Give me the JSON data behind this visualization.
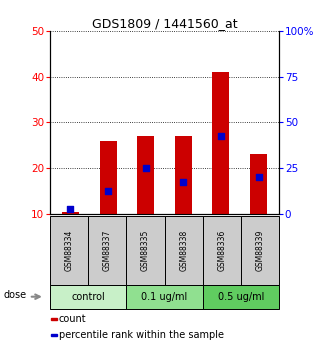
{
  "title": "GDS1809 / 1441560_at",
  "samples": [
    "GSM88334",
    "GSM88337",
    "GSM88335",
    "GSM88338",
    "GSM88336",
    "GSM88339"
  ],
  "bar_tops": [
    10.5,
    26,
    27,
    27,
    41,
    23
  ],
  "bar_bottom": 10,
  "percentile_values": [
    11,
    15,
    20,
    17,
    27,
    18
  ],
  "dose_groups": [
    {
      "label": "control",
      "span": [
        0,
        2
      ],
      "color": "#c8f0c8"
    },
    {
      "label": "0.1 ug/ml",
      "span": [
        2,
        4
      ],
      "color": "#90e090"
    },
    {
      "label": "0.5 ug/ml",
      "span": [
        4,
        6
      ],
      "color": "#60cc60"
    }
  ],
  "ylim_left": [
    10,
    50
  ],
  "ylim_right": [
    0,
    100
  ],
  "yticks_left": [
    10,
    20,
    30,
    40,
    50
  ],
  "yticks_right": [
    0,
    25,
    50,
    75,
    100
  ],
  "yticklabels_right": [
    "0",
    "25",
    "50",
    "75",
    "100%"
  ],
  "bar_color": "#cc0000",
  "dot_color": "#0000cc",
  "bar_width": 0.45,
  "legend_items": [
    {
      "label": "count",
      "color": "#cc0000"
    },
    {
      "label": "percentile rank within the sample",
      "color": "#0000cc"
    }
  ],
  "dose_label": "dose",
  "sample_box_color": "#cccccc",
  "bg_color": "#ffffff"
}
